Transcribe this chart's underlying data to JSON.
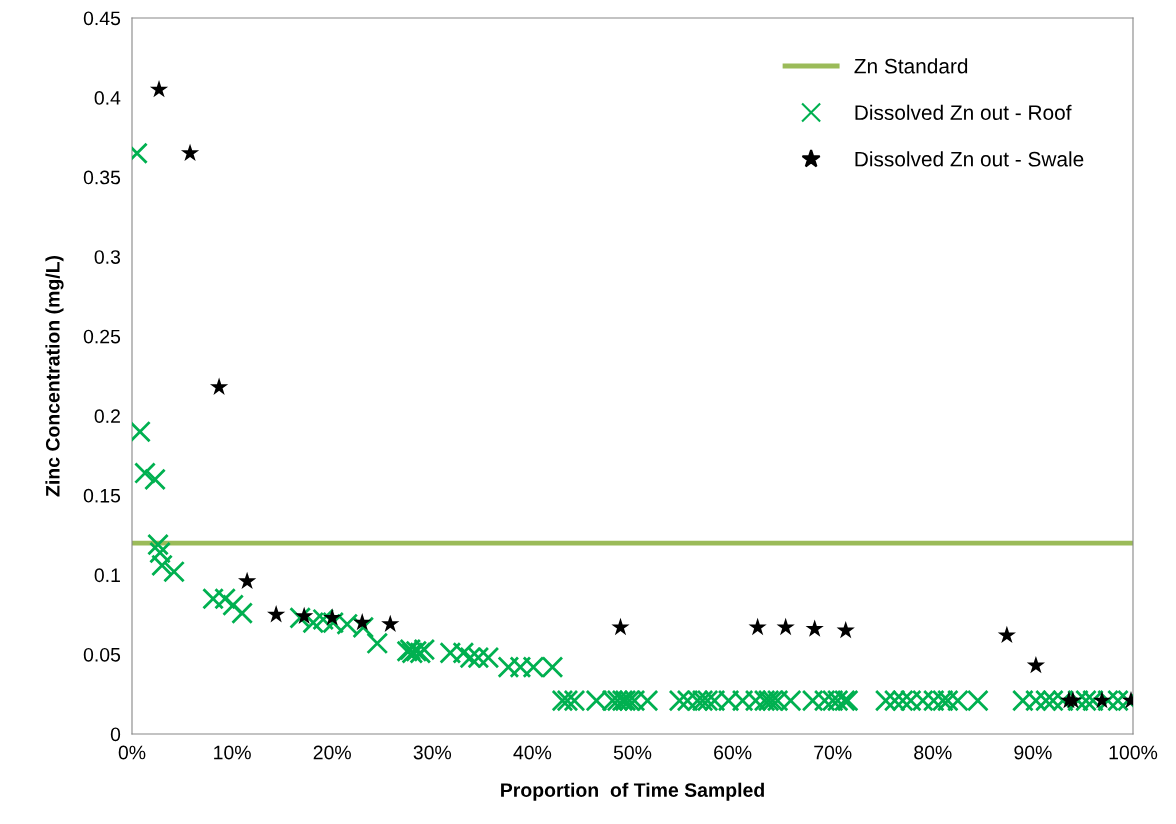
{
  "chart_data": {
    "type": "scatter",
    "xlabel": "Proportion  of Time Sampled",
    "ylabel": "Zinc Concentration (mg/L)",
    "xlim": [
      0,
      100
    ],
    "ylim": [
      0,
      0.45
    ],
    "xticks": [
      {
        "value": 0,
        "label": "0%"
      },
      {
        "value": 10,
        "label": "10%"
      },
      {
        "value": 20,
        "label": "20%"
      },
      {
        "value": 30,
        "label": "30%"
      },
      {
        "value": 40,
        "label": "40%"
      },
      {
        "value": 50,
        "label": "50%"
      },
      {
        "value": 60,
        "label": "60%"
      },
      {
        "value": 70,
        "label": "70%"
      },
      {
        "value": 80,
        "label": "80%"
      },
      {
        "value": 90,
        "label": "90%"
      },
      {
        "value": 100,
        "label": "100%"
      }
    ],
    "yticks": [
      0,
      0.05,
      0.1,
      0.15,
      0.2,
      0.25,
      0.3,
      0.35,
      0.4,
      0.45
    ],
    "grid": false,
    "legend": "top right",
    "series": [
      {
        "name": "Zn Standard",
        "type": "line",
        "color": "#9bbb59",
        "marker": "none",
        "x": [
          0,
          100
        ],
        "values": [
          0.12,
          0.12
        ]
      },
      {
        "name": "Dissolved Zn out - Roof",
        "color": "#00b050",
        "marker": "cross",
        "x": [
          0.5,
          0.8,
          1.3,
          2.3,
          2.6,
          2.8,
          3.0,
          4.2,
          8.1,
          9.3,
          10.1,
          11.0,
          16.8,
          18.1,
          19.1,
          20.1,
          21.5,
          23.1,
          24.5,
          27.5,
          27.8,
          28.0,
          28.4,
          28.8,
          29.2,
          31.8,
          33.1,
          33.8,
          34.6,
          35.6,
          37.6,
          38.8,
          40.1,
          42.0,
          43.0,
          43.5,
          44.2,
          46.4,
          48.0,
          48.5,
          49.0,
          49.3,
          49.7,
          50.2,
          51.5,
          54.7,
          55.5,
          56.5,
          57.0,
          57.5,
          58.2,
          59.6,
          61.0,
          62.3,
          63.2,
          63.6,
          64.0,
          64.5,
          65.8,
          68.0,
          69.2,
          70.0,
          70.5,
          71.2,
          71.5,
          75.3,
          76.2,
          77.0,
          77.8,
          79.0,
          80.1,
          81.0,
          81.5,
          82.5,
          84.5,
          89.0,
          90.3,
          91.3,
          92.0,
          93.0,
          94.5,
          95.3,
          96.0,
          97.5,
          98.5,
          99.5
        ],
        "values": [
          0.365,
          0.19,
          0.164,
          0.16,
          0.119,
          0.114,
          0.106,
          0.102,
          0.085,
          0.085,
          0.081,
          0.076,
          0.073,
          0.07,
          0.072,
          0.07,
          0.069,
          0.067,
          0.057,
          0.052,
          0.053,
          0.051,
          0.052,
          0.051,
          0.053,
          0.051,
          0.051,
          0.048,
          0.048,
          0.048,
          0.042,
          0.042,
          0.042,
          0.042,
          0.021,
          0.021,
          0.021,
          0.021,
          0.021,
          0.021,
          0.021,
          0.021,
          0.021,
          0.021,
          0.021,
          0.021,
          0.021,
          0.021,
          0.021,
          0.021,
          0.021,
          0.021,
          0.021,
          0.021,
          0.021,
          0.021,
          0.021,
          0.021,
          0.021,
          0.021,
          0.021,
          0.021,
          0.021,
          0.021,
          0.021,
          0.021,
          0.021,
          0.021,
          0.021,
          0.021,
          0.021,
          0.021,
          0.021,
          0.021,
          0.021,
          0.021,
          0.021,
          0.021,
          0.021,
          0.021,
          0.021,
          0.021,
          0.021,
          0.021,
          0.021,
          0.021
        ]
      },
      {
        "name": "Dissolved Zn out - Swale",
        "color": "#000000",
        "marker": "star",
        "x": [
          2.7,
          5.8,
          8.7,
          11.5,
          14.4,
          17.2,
          20.0,
          23.0,
          25.8,
          48.8,
          62.5,
          65.3,
          68.2,
          71.3,
          87.4,
          90.3,
          93.3,
          93.6,
          94.0,
          96.9,
          99.8
        ],
        "values": [
          0.405,
          0.365,
          0.218,
          0.096,
          0.075,
          0.074,
          0.073,
          0.07,
          0.069,
          0.067,
          0.067,
          0.067,
          0.066,
          0.065,
          0.062,
          0.043,
          null,
          0.021,
          0.021,
          0.021,
          0.021
        ]
      }
    ]
  }
}
